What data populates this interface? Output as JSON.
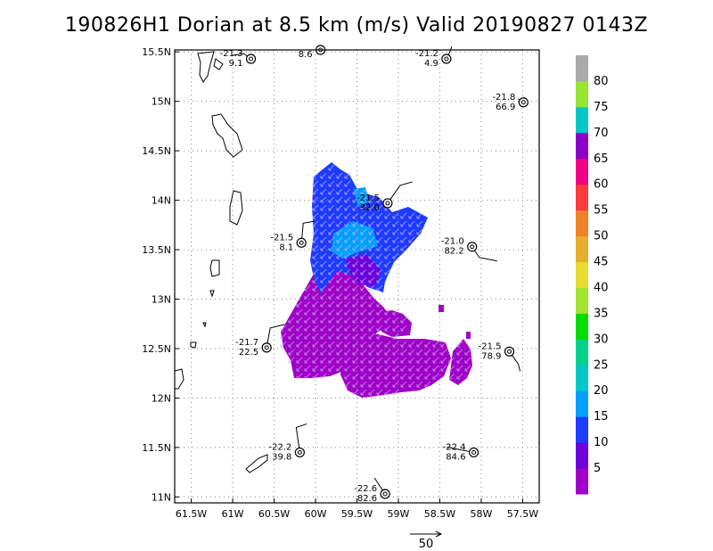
{
  "title": "190826H1 Dorian at 8.5 km (m/s) Valid 20190827 0143Z",
  "chart_data": {
    "type": "heatmap",
    "title": "190826H1 Dorian at 8.5 km (m/s) Valid 20190827 0143Z",
    "x_tick_labels": [
      "61.5W",
      "61W",
      "60.5W",
      "60W",
      "59.5W",
      "59W",
      "58.5W",
      "58W",
      "57.5W"
    ],
    "x_ticks": [
      -61.5,
      -61,
      -60.5,
      -60,
      -59.5,
      -59,
      -58.5,
      -58,
      -57.5
    ],
    "xlim": [
      -61.7,
      -57.3
    ],
    "y_tick_labels": [
      "11N",
      "11.5N",
      "12N",
      "12.5N",
      "13N",
      "13.5N",
      "14N",
      "14.5N",
      "15N",
      "15.5N"
    ],
    "y_ticks": [
      11,
      11.5,
      12,
      12.5,
      13,
      13.5,
      14,
      14.5,
      15,
      15.5
    ],
    "ylim": [
      10.94,
      15.52
    ],
    "grid": true,
    "vector_reference": {
      "label": "50"
    },
    "colorbar": {
      "labels": [
        "5",
        "10",
        "15",
        "20",
        "25",
        "30",
        "35",
        "40",
        "45",
        "50",
        "55",
        "60",
        "65",
        "70",
        "75",
        "80"
      ],
      "colors": [
        "#a000c8",
        "#6e00dc",
        "#1e3cff",
        "#00a0ff",
        "#00c8c8",
        "#00d28c",
        "#00dc00",
        "#a0e632",
        "#e6dc32",
        "#e6af2d",
        "#f08228",
        "#fa3c3c",
        "#f00082",
        "#8c00c8",
        "#00c8c8",
        "#96e632",
        "#aaaaaa"
      ]
    },
    "stations": [
      {
        "temp": "-21.3",
        "wind": "9.1",
        "lon": -60.78,
        "lat": 15.43
      },
      {
        "temp": "",
        "wind": "8.6",
        "lon": -59.94,
        "lat": 15.52
      },
      {
        "temp": "-21.2",
        "wind": "4.9",
        "lon": -58.42,
        "lat": 15.43
      },
      {
        "temp": "-21.8",
        "wind": "66.9",
        "lon": -57.49,
        "lat": 14.99
      },
      {
        "temp": "-21.5",
        "wind": "32.0",
        "lon": -59.13,
        "lat": 13.97
      },
      {
        "temp": "-21.5",
        "wind": "8.1",
        "lon": -60.17,
        "lat": 13.57
      },
      {
        "temp": "-21.0",
        "wind": "82.2",
        "lon": -58.11,
        "lat": 13.53
      },
      {
        "temp": "-21.7",
        "wind": "22.5",
        "lon": -60.59,
        "lat": 12.51
      },
      {
        "temp": "-21.5",
        "wind": "78.9",
        "lon": -57.66,
        "lat": 12.47
      },
      {
        "temp": "-22.2",
        "wind": "39.8",
        "lon": -60.19,
        "lat": 11.45
      },
      {
        "temp": "-22.4",
        "wind": "84.6",
        "lon": -58.09,
        "lat": 11.45
      },
      {
        "temp": "-22.6",
        "wind": "82.6",
        "lon": -59.16,
        "lat": 11.03
      }
    ]
  }
}
